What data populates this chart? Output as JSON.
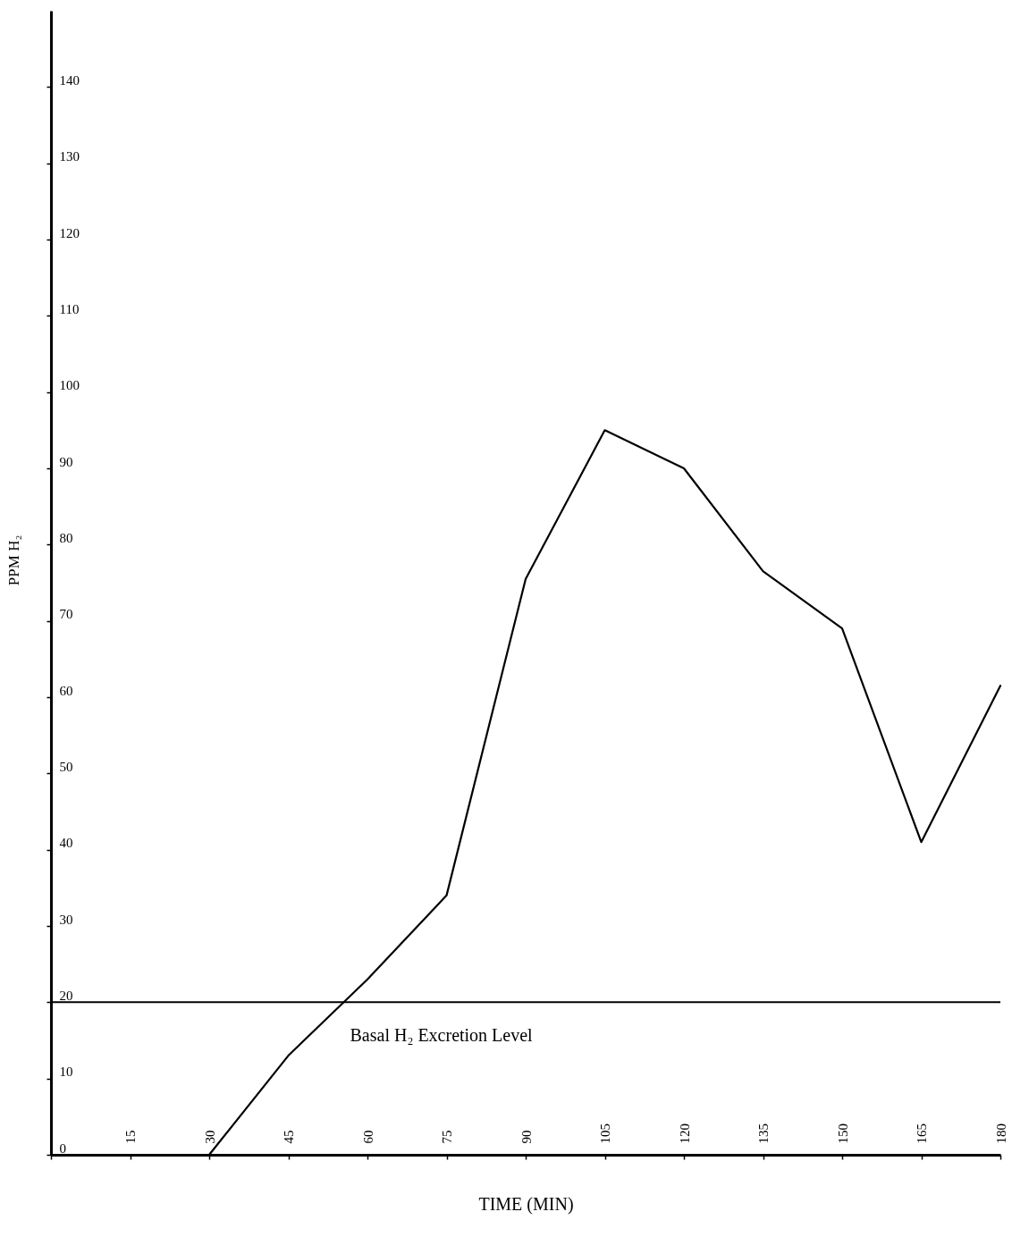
{
  "chart_data": {
    "type": "line",
    "xlabel": "TIME (MIN)",
    "ylabel": "PPM H₂",
    "x": [
      30,
      45,
      60,
      75,
      90,
      105,
      120,
      135,
      150,
      165,
      180
    ],
    "series": [
      {
        "color": "#000000",
        "values": [
          0,
          13,
          23,
          34,
          75.5,
          95,
          90,
          76.5,
          69,
          41,
          61.5
        ]
      }
    ],
    "xlim": [
      0,
      180
    ],
    "xticks": [
      {
        "value": 0,
        "label": null
      },
      15,
      30,
      45,
      60,
      75,
      90,
      105,
      120,
      135,
      150,
      165,
      180
    ],
    "ylim": [
      0,
      150
    ],
    "yticks": [
      0,
      10,
      20,
      30,
      40,
      50,
      60,
      70,
      80,
      90,
      100,
      110,
      120,
      130,
      140
    ],
    "ref_lines": [
      {
        "axis": "y",
        "value": 20,
        "label": "Basal H₂ Excretion Level",
        "color": "#000000"
      }
    ],
    "grid": false,
    "marker": "none",
    "line_style": "solid"
  }
}
